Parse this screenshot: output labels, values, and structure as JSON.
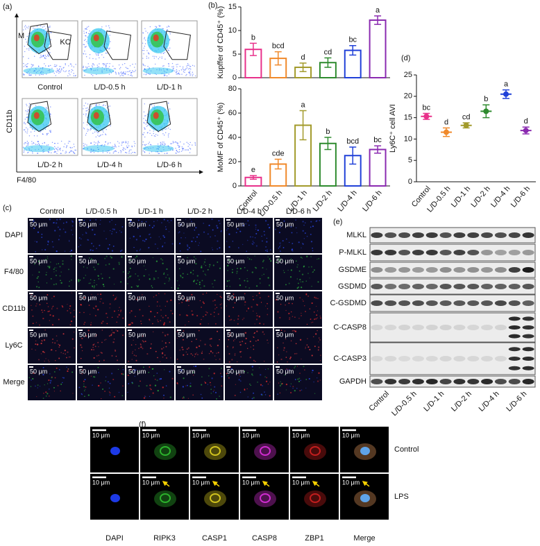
{
  "panel_labels": [
    "(a)",
    "(b)",
    "(c)",
    "(d)",
    "(e)",
    "(f)"
  ],
  "flow": {
    "y_label": "CD11b",
    "x_label": "F4/80",
    "gates": [
      "M",
      "KC"
    ],
    "groups": [
      "Control",
      "L/D-0.5 h",
      "L/D-1 h",
      "L/D-2 h",
      "L/D-4 h",
      "L/D-6 h"
    ]
  },
  "chart_data": [
    {
      "type": "bar",
      "y_label": "Kupffer of CD45⁺ (%)",
      "values": [
        6.0,
        4.1,
        2.2,
        3.2,
        5.8,
        12.2
      ],
      "errors": [
        1.3,
        1.4,
        0.9,
        1.0,
        1.0,
        0.9
      ],
      "letters": [
        "b",
        "bcd",
        "d",
        "cd",
        "bc",
        "a"
      ],
      "colors": [
        "#e8308a",
        "#f0892a",
        "#a29a2a",
        "#2e8b2e",
        "#2040d8",
        "#8a2ab0"
      ],
      "ylim": [
        0,
        15
      ],
      "yticks": [
        0,
        5,
        10,
        15
      ]
    },
    {
      "type": "bar",
      "y_label": "MoMF of CD45⁺ (%)",
      "categories": [
        "Control",
        "L/D-0.5 h",
        "L/D-1 h",
        "L/D-2 h",
        "L/D-4 h",
        "L/D-6 h"
      ],
      "values": [
        7,
        18,
        50,
        35,
        25,
        30
      ],
      "errors": [
        1.5,
        4,
        12,
        5,
        7,
        3
      ],
      "letters": [
        "e",
        "cde",
        "a",
        "b",
        "bcd",
        "bc"
      ],
      "colors": [
        "#e8308a",
        "#f0892a",
        "#a29a2a",
        "#2e8b2e",
        "#2040d8",
        "#8a2ab0"
      ],
      "ylim": [
        0,
        80
      ],
      "yticks": [
        0,
        20,
        40,
        60,
        80
      ]
    },
    {
      "type": "dot",
      "y_label": "Ly6C⁺ cell AVI",
      "categories": [
        "Control",
        "L/D-0.5 h",
        "L/D-1 h",
        "L/D-2 h",
        "L/D-4 h",
        "L/D-6 h"
      ],
      "values": [
        15.3,
        11.6,
        13.2,
        16.5,
        20.5,
        12.0
      ],
      "errors": [
        0.7,
        1.0,
        0.6,
        1.5,
        1.0,
        0.8
      ],
      "letters": [
        "bc",
        "d",
        "cd",
        "b",
        "a",
        "d"
      ],
      "colors": [
        "#e8308a",
        "#f0892a",
        "#a29a2a",
        "#2e8b2e",
        "#2040d8",
        "#8a2ab0"
      ],
      "ylim": [
        0,
        25
      ],
      "yticks": [
        0,
        5,
        10,
        15,
        20,
        25
      ]
    }
  ],
  "if_c": {
    "columns": [
      "Control",
      "L/D-0.5 h",
      "L/D-1 h",
      "L/D-2 h",
      "L/D-4 h",
      "L/D-6 h"
    ],
    "rows": [
      "DAPI",
      "F4/80",
      "CD11b",
      "Ly6C",
      "Merge"
    ],
    "scale": "50 μm"
  },
  "blot": {
    "rows": [
      "MLKL",
      "P-MLKL",
      "GSDME",
      "GSDMD",
      "C-GSDMD",
      "C-CASP8",
      "C-CASP3",
      "GAPDH"
    ],
    "groups": [
      "Control",
      "L/D-0.5 h",
      "L/D-1 h",
      "L/D-2 h",
      "L/D-4 h",
      "L/D-6 h"
    ]
  },
  "if_f": {
    "columns": [
      "DAPI",
      "RIPK3",
      "CASP1",
      "CASP8",
      "ZBP1",
      "Merge"
    ],
    "rows": [
      "Control",
      "LPS"
    ],
    "scale": "10 μm"
  }
}
